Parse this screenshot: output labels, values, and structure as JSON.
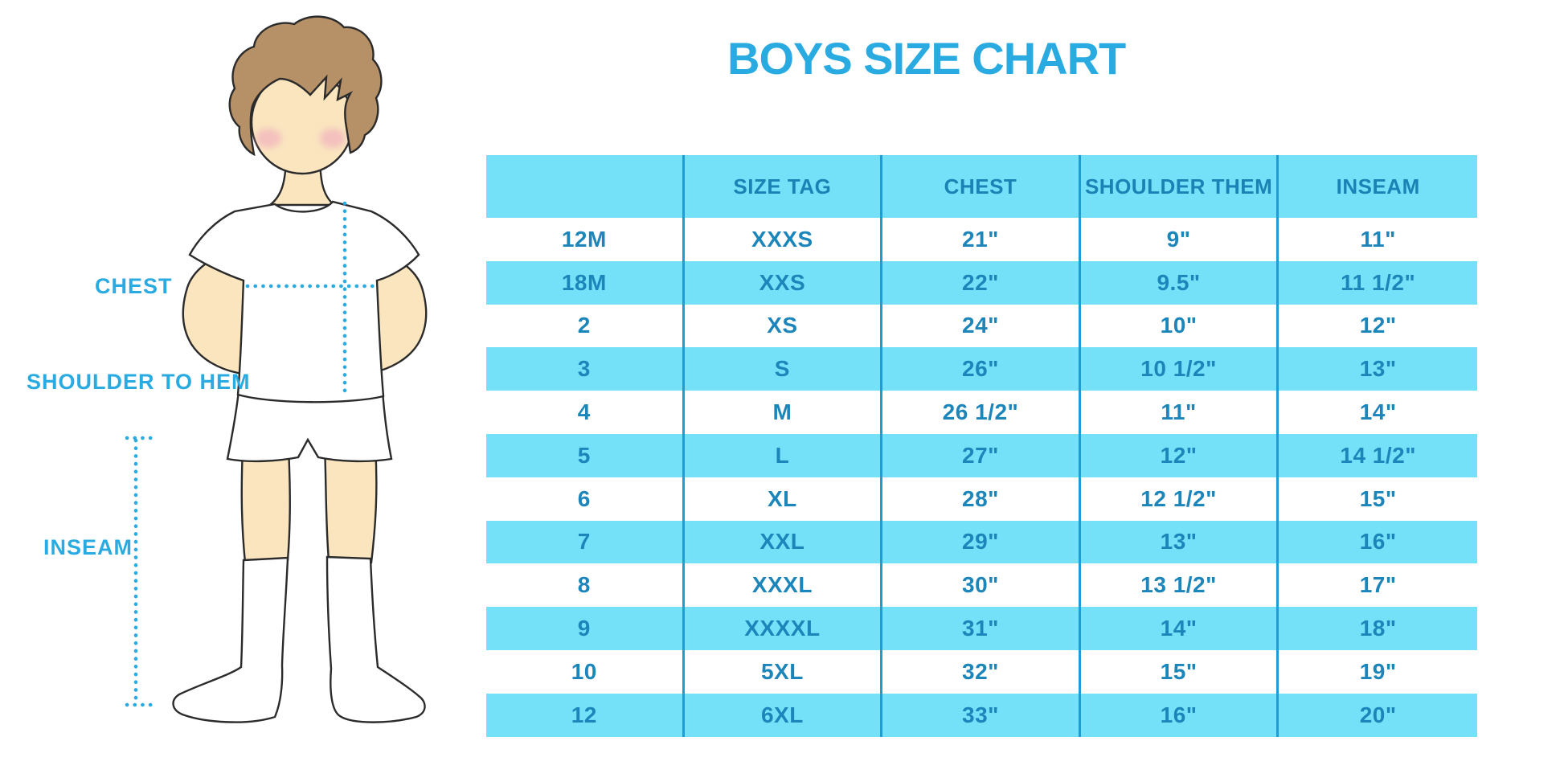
{
  "title": "BOYS SIZE CHART",
  "figure": {
    "labels": {
      "chest": "CHEST",
      "shoulder_to_hem": "SHOULDER TO HEM",
      "inseam": "INSEAM"
    }
  },
  "chart_data": {
    "type": "table",
    "title": "BOYS SIZE CHART",
    "columns": [
      "",
      "SIZE TAG",
      "CHEST",
      "SHOULDER THEM",
      "INSEAM"
    ],
    "rows": [
      [
        "12M",
        "XXXS",
        "21\"",
        "9\"",
        "11\""
      ],
      [
        "18M",
        "XXS",
        "22\"",
        "9.5\"",
        "11 1/2\""
      ],
      [
        "2",
        "XS",
        "24\"",
        "10\"",
        "12\""
      ],
      [
        "3",
        "S",
        "26\"",
        "10 1/2\"",
        "13\""
      ],
      [
        "4",
        "M",
        "26 1/2\"",
        "11\"",
        "14\""
      ],
      [
        "5",
        "L",
        "27\"",
        "12\"",
        "14 1/2\""
      ],
      [
        "6",
        "XL",
        "28\"",
        "12 1/2\"",
        "15\""
      ],
      [
        "7",
        "XXL",
        "29\"",
        "13\"",
        "16\""
      ],
      [
        "8",
        "XXXL",
        "30\"",
        "13 1/2\"",
        "17\""
      ],
      [
        "9",
        "XXXXL",
        "31\"",
        "14\"",
        "18\""
      ],
      [
        "10",
        "5XL",
        "32\"",
        "15\"",
        "19\""
      ],
      [
        "12",
        "6XL",
        "33\"",
        "16\"",
        "20\""
      ]
    ],
    "layout": {
      "striped": true,
      "stripe_pattern": "header blue, then data rows alternate white/blue starting white",
      "legend": "none",
      "grid": "vertical column separators only"
    }
  },
  "colors": {
    "accent_blue": "#29ABE2",
    "table_stripe": "#75E1F8",
    "table_line": "#1E9CD3",
    "table_text": "#1C86BB",
    "skin": "#FAE5BF",
    "hair": "#B69067",
    "blush": "#F0A8BE",
    "outline": "#2B2B2B"
  }
}
